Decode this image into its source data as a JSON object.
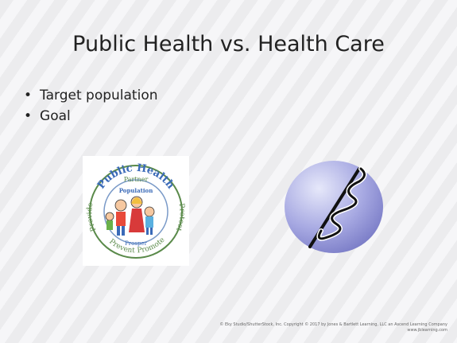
{
  "slide": {
    "title": "Public Health vs. Health Care",
    "bullets": [
      "Target population",
      "Goal"
    ],
    "logo": {
      "title": "Public Health",
      "words": [
        "Partner",
        "Population",
        "Provide",
        "Protect",
        "Prosper",
        "Prevent",
        "Promote"
      ]
    },
    "footer": [
      "© Eky Studio/ShutterStock, Inc. Copyright © 2017 by Jones & Bartlett Learning, LLC an Ascend Learning Company",
      "www.jblearning.com"
    ]
  }
}
